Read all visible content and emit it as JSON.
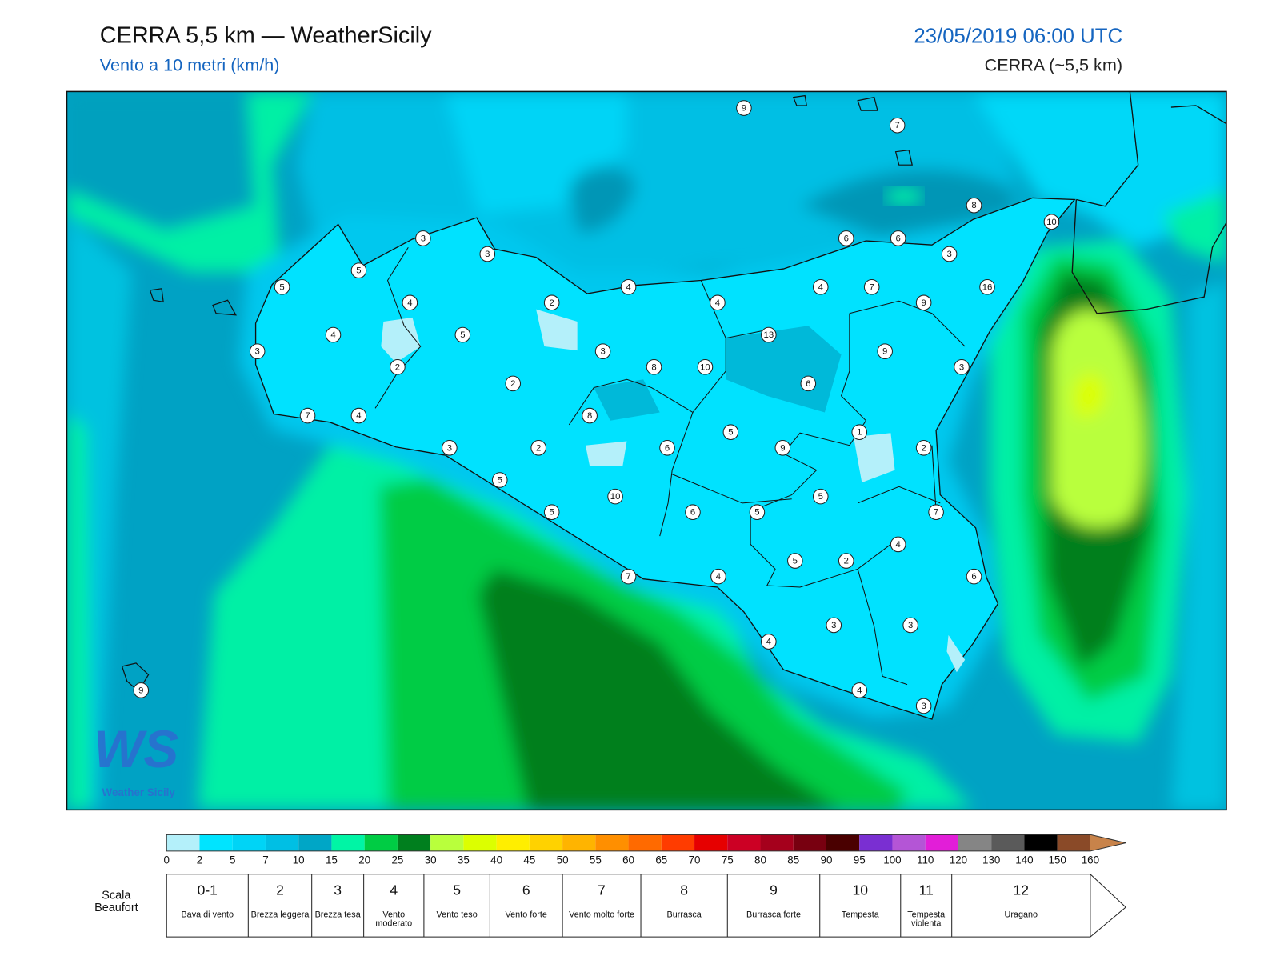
{
  "header": {
    "title": "CERRA 5,5 km — WeatherSicily",
    "subtitle": "Vento a 10 metri (km/h)",
    "date": "23/05/2019 06:00 UTC",
    "model": "CERRA (~5,5 km)"
  },
  "logo": {
    "mark": "WS",
    "name": "Weather Sicily"
  },
  "stations": {
    "values": [
      9,
      7,
      8,
      10,
      3,
      3,
      6,
      6,
      3,
      5,
      5,
      4,
      4,
      7,
      16,
      4,
      2,
      4,
      9,
      4,
      5,
      13,
      3,
      3,
      9,
      2,
      8,
      10,
      3,
      2,
      6,
      7,
      4,
      8,
      1,
      5,
      3,
      2,
      6,
      9,
      2,
      5,
      5,
      10,
      5,
      6,
      5,
      7,
      4,
      5,
      2,
      7,
      4,
      6,
      3,
      3,
      4,
      4,
      3,
      9
    ]
  },
  "colorbar": {
    "ticks": [
      0,
      2,
      5,
      7,
      10,
      15,
      20,
      25,
      30,
      35,
      40,
      45,
      50,
      55,
      60,
      65,
      70,
      75,
      80,
      85,
      90,
      95,
      100,
      110,
      120,
      130,
      140,
      150,
      160
    ],
    "colors": [
      "#b4f0fa",
      "#00e4ff",
      "#00d4f6",
      "#00bfe4",
      "#00a6c6",
      "#00f5a5",
      "#00cc44",
      "#007f1e",
      "#b9ff3c",
      "#dcff00",
      "#ffee00",
      "#ffd200",
      "#ffb400",
      "#ff8f00",
      "#ff6a00",
      "#ff3c00",
      "#e60000",
      "#cc0024",
      "#a5001c",
      "#780010",
      "#4a0000",
      "#7a2fd2",
      "#b455d6",
      "#e21ed8",
      "#858585",
      "#5a5a5a",
      "#000000",
      "#8a4a28",
      "#c8834a"
    ]
  },
  "beaufort": {
    "title": "Scala Beaufort",
    "levels": [
      {
        "force": "0-1",
        "label": "Bava di vento"
      },
      {
        "force": "2",
        "label": "Brezza leggera"
      },
      {
        "force": "3",
        "label": "Brezza tesa"
      },
      {
        "force": "4",
        "label": "Vento moderato"
      },
      {
        "force": "5",
        "label": "Vento teso"
      },
      {
        "force": "6",
        "label": "Vento forte"
      },
      {
        "force": "7",
        "label": "Vento molto forte"
      },
      {
        "force": "8",
        "label": "Burrasca"
      },
      {
        "force": "9",
        "label": "Burrasca forte"
      },
      {
        "force": "10",
        "label": "Tempesta"
      },
      {
        "force": "11",
        "label": "Tempesta violenta"
      },
      {
        "force": "12",
        "label": "Uragano"
      }
    ]
  }
}
